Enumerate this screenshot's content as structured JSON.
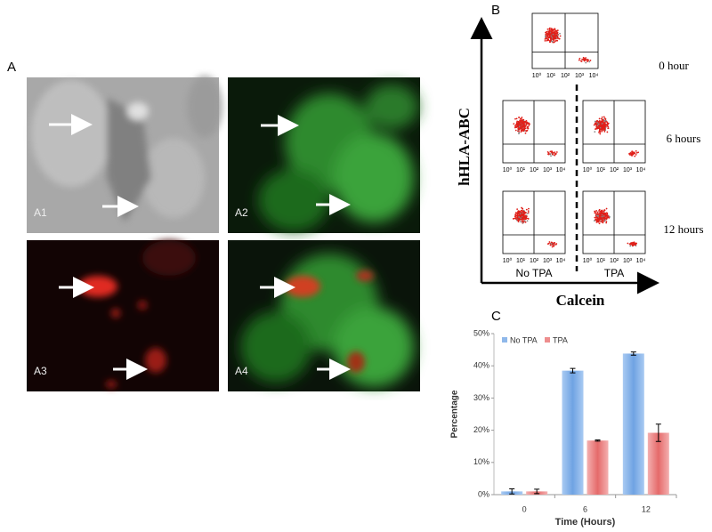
{
  "panel_a": {
    "label": "A",
    "images": [
      {
        "label": "A1"
      },
      {
        "label": "A2"
      },
      {
        "label": "A3"
      },
      {
        "label": "A4"
      }
    ]
  },
  "panel_b": {
    "label": "B",
    "y_axis_label": "hHLA-ABC",
    "x_axis_label": "Calcein",
    "rows": [
      "0 hour",
      "6 hours",
      "12 hours"
    ],
    "conditions": [
      "No TPA",
      "TPA"
    ],
    "tick_labels": [
      "10⁰",
      "10¹",
      "10²",
      "10³",
      "10⁴"
    ]
  },
  "chart_data": {
    "type": "bar",
    "label": "C",
    "xlabel": "Time (Hours)",
    "ylabel": "Percentage",
    "categories": [
      "0",
      "6",
      "12"
    ],
    "series": [
      {
        "name": "No TPA",
        "color": "#8fb8ea",
        "values": [
          1,
          38.5,
          43.8
        ],
        "errors": [
          0.8,
          0.7,
          0.5
        ]
      },
      {
        "name": "TPA",
        "color": "#ee8e8e",
        "values": [
          1,
          16.8,
          19.2
        ],
        "errors": [
          0.7,
          0.2,
          2.7
        ]
      }
    ],
    "ylim": [
      0,
      50
    ],
    "yticks": [
      {
        "value": 0,
        "label": "0%"
      },
      {
        "value": 10,
        "label": "10%"
      },
      {
        "value": 20,
        "label": "20%"
      },
      {
        "value": 30,
        "label": "30%"
      },
      {
        "value": 40,
        "label": "40%"
      },
      {
        "value": 50,
        "label": "50%"
      }
    ],
    "legend": "top-left"
  }
}
